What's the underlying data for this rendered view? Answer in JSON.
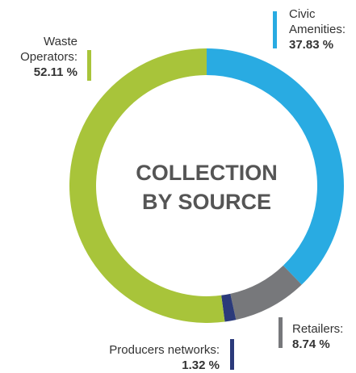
{
  "chart_data": {
    "type": "donut",
    "title": "COLLECTION BY SOURCE",
    "categories": [
      "Civic Amenities:",
      "Retailers:",
      "Producers networks:",
      "Waste Operators:"
    ],
    "values": [
      37.83,
      8.74,
      1.32,
      52.11
    ],
    "value_labels": [
      "37.83 %",
      "8.74 %",
      "1.32 %",
      "52.11 %"
    ],
    "colors": [
      "#29abe2",
      "#77787b",
      "#2b3a7a",
      "#a8c43a"
    ]
  }
}
